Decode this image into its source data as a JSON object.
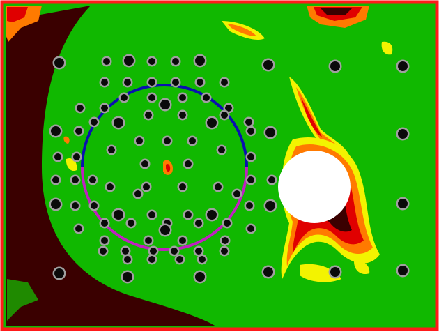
{
  "view": {
    "colors": {
      "frame_border": "#ff1a1a",
      "background_green": "#10b800",
      "dark_region": "#3a0000",
      "hot_red": "#e00000",
      "hot_orange": "#ff7a00",
      "hot_yellow": "#f3f300",
      "upper_arc": "#0a10b0",
      "lower_arc": "#c020c0",
      "disc": "#ffffff",
      "marker_ring": "#a0a0a0",
      "marker_core": "#0a0a0a"
    },
    "markers": {
      "shape": "dot-with-gray-ring",
      "approximate_count": 120
    }
  }
}
